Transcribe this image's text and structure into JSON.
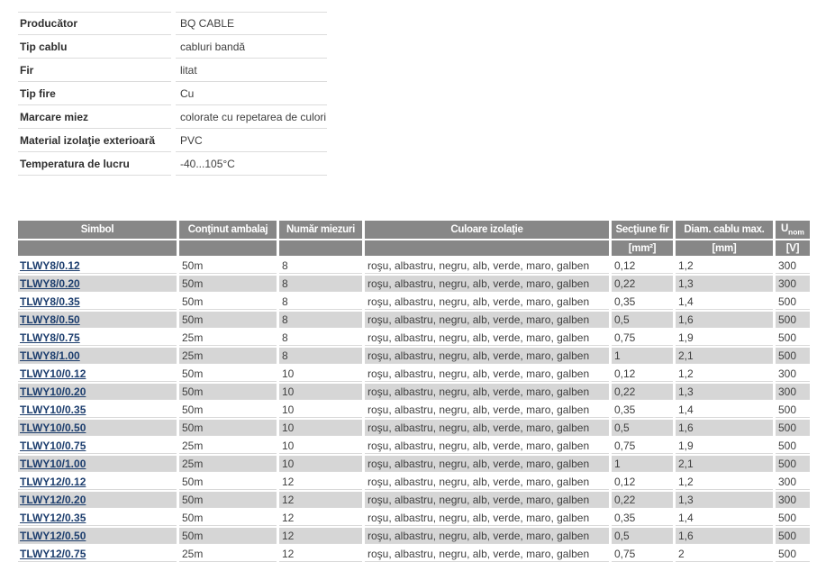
{
  "properties": {
    "rows": [
      {
        "label": "Producător",
        "value": "BQ CABLE"
      },
      {
        "label": "Tip cablu",
        "value": "cabluri bandă"
      },
      {
        "label": "Fir",
        "value": "litat"
      },
      {
        "label": "Tip fire",
        "value": "Cu"
      },
      {
        "label": "Marcare miez",
        "value": "colorate cu repetarea de culori"
      },
      {
        "label": "Material izolaţie exterioară",
        "value": "PVC"
      },
      {
        "label": "Temperatura de lucru",
        "value": "-40...105°C"
      }
    ]
  },
  "products": {
    "columns": {
      "symbol": "Simbol",
      "package": "Conţinut ambalaj",
      "cores": "Număr miezuri",
      "colors": "Culoare izolaţie",
      "section": "Secţiune fir",
      "diameter": "Diam. cablu max.",
      "unom_base": "U",
      "unom_sub": "nom"
    },
    "units": {
      "section": "[mm²]",
      "diameter": "[mm]",
      "unom": "[V]"
    },
    "rows": [
      {
        "symbol": "TLWY8/0.12",
        "package": "50m",
        "cores": "8",
        "colors": "roşu, albastru, negru, alb, verde, maro, galben",
        "section": "0,12",
        "diameter": "1,2",
        "unom": "300"
      },
      {
        "symbol": "TLWY8/0.20",
        "package": "50m",
        "cores": "8",
        "colors": "roşu, albastru, negru, alb, verde, maro, galben",
        "section": "0,22",
        "diameter": "1,3",
        "unom": "300"
      },
      {
        "symbol": "TLWY8/0.35",
        "package": "50m",
        "cores": "8",
        "colors": "roşu, albastru, negru, alb, verde, maro, galben",
        "section": "0,35",
        "diameter": "1,4",
        "unom": "500"
      },
      {
        "symbol": "TLWY8/0.50",
        "package": "50m",
        "cores": "8",
        "colors": "roşu, albastru, negru, alb, verde, maro, galben",
        "section": "0,5",
        "diameter": "1,6",
        "unom": "500"
      },
      {
        "symbol": "TLWY8/0.75",
        "package": "25m",
        "cores": "8",
        "colors": "roşu, albastru, negru, alb, verde, maro, galben",
        "section": "0,75",
        "diameter": "1,9",
        "unom": "500"
      },
      {
        "symbol": "TLWY8/1.00",
        "package": "25m",
        "cores": "8",
        "colors": "roşu, albastru, negru, alb, verde, maro, galben",
        "section": "1",
        "diameter": "2,1",
        "unom": "500"
      },
      {
        "symbol": "TLWY10/0.12",
        "package": "50m",
        "cores": "10",
        "colors": "roşu, albastru, negru, alb, verde, maro, galben",
        "section": "0,12",
        "diameter": "1,2",
        "unom": "300"
      },
      {
        "symbol": "TLWY10/0.20",
        "package": "50m",
        "cores": "10",
        "colors": "roşu, albastru, negru, alb, verde, maro, galben",
        "section": "0,22",
        "diameter": "1,3",
        "unom": "300"
      },
      {
        "symbol": "TLWY10/0.35",
        "package": "50m",
        "cores": "10",
        "colors": "roşu, albastru, negru, alb, verde, maro, galben",
        "section": "0,35",
        "diameter": "1,4",
        "unom": "500"
      },
      {
        "symbol": "TLWY10/0.50",
        "package": "50m",
        "cores": "10",
        "colors": "roşu, albastru, negru, alb, verde, maro, galben",
        "section": "0,5",
        "diameter": "1,6",
        "unom": "500"
      },
      {
        "symbol": "TLWY10/0.75",
        "package": "25m",
        "cores": "10",
        "colors": "roşu, albastru, negru, alb, verde, maro, galben",
        "section": "0,75",
        "diameter": "1,9",
        "unom": "500"
      },
      {
        "symbol": "TLWY10/1.00",
        "package": "25m",
        "cores": "10",
        "colors": "roşu, albastru, negru, alb, verde, maro, galben",
        "section": "1",
        "diameter": "2,1",
        "unom": "500"
      },
      {
        "symbol": "TLWY12/0.12",
        "package": "50m",
        "cores": "12",
        "colors": "roşu, albastru, negru, alb, verde, maro, galben",
        "section": "0,12",
        "diameter": "1,2",
        "unom": "300"
      },
      {
        "symbol": "TLWY12/0.20",
        "package": "50m",
        "cores": "12",
        "colors": "roşu, albastru, negru, alb, verde, maro, galben",
        "section": "0,22",
        "diameter": "1,3",
        "unom": "300"
      },
      {
        "symbol": "TLWY12/0.35",
        "package": "50m",
        "cores": "12",
        "colors": "roşu, albastru, negru, alb, verde, maro, galben",
        "section": "0,35",
        "diameter": "1,4",
        "unom": "500"
      },
      {
        "symbol": "TLWY12/0.50",
        "package": "50m",
        "cores": "12",
        "colors": "roşu, albastru, negru, alb, verde, maro, galben",
        "section": "0,5",
        "diameter": "1,6",
        "unom": "500"
      },
      {
        "symbol": "TLWY12/0.75",
        "package": "25m",
        "cores": "12",
        "colors": "roşu, albastru, negru, alb, verde, maro, galben",
        "section": "0,75",
        "diameter": "2",
        "unom": "500"
      }
    ]
  },
  "colors": {
    "header_bg": "#878787",
    "alt_row_bg": "#d6d6d6",
    "link": "#1d3e6e",
    "border": "#d9d9d9"
  }
}
